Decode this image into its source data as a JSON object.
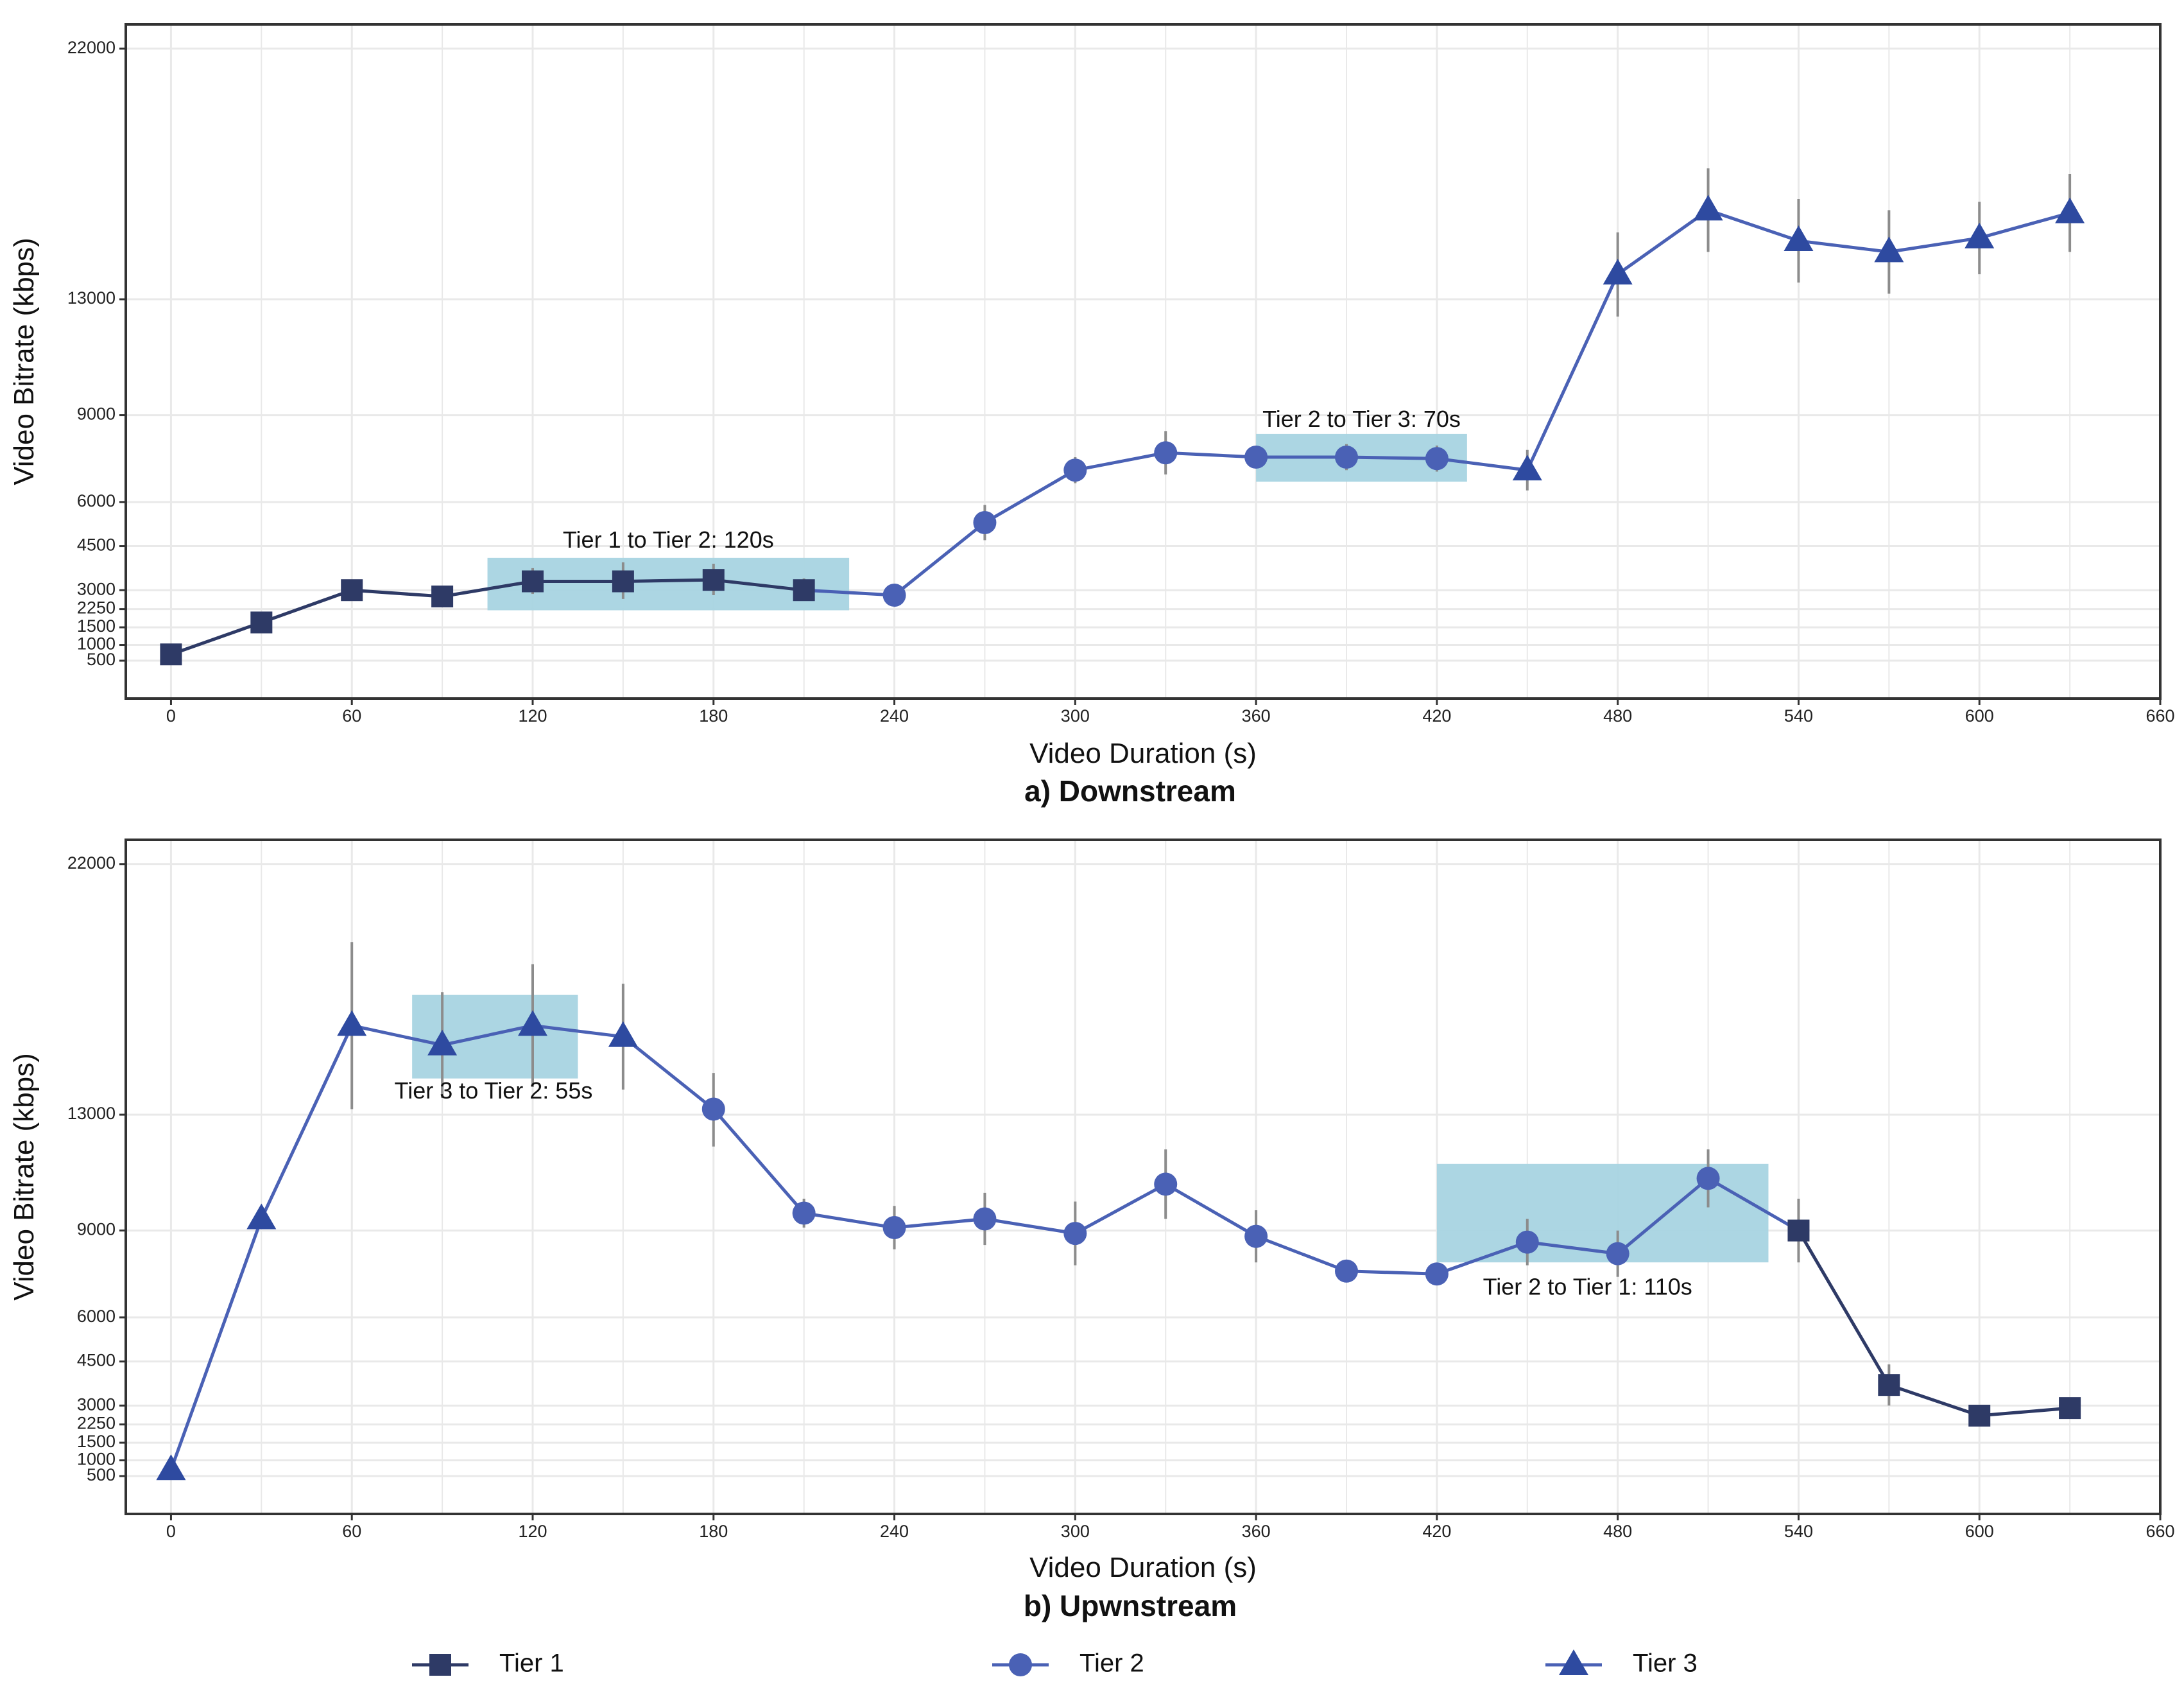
{
  "chart_data": [
    {
      "type": "line",
      "title": "a) Downstream",
      "xlabel": "Video Duration (s)",
      "ylabel": "Video Bitrate (kbps)",
      "xlim": [
        -15,
        660
      ],
      "x_ticks": [
        0,
        60,
        120,
        180,
        240,
        300,
        360,
        420,
        480,
        540,
        600,
        660
      ],
      "y_ticks": [
        500,
        1000,
        1500,
        2250,
        3000,
        4500,
        6000,
        9000,
        13000,
        22000
      ],
      "grid": true,
      "series": [
        {
          "name": "Video Bitrate",
          "points": [
            {
              "x": 0,
              "y": 700,
              "tier": "Tier 1",
              "err": 0
            },
            {
              "x": 30,
              "y": 1700,
              "tier": "Tier 1",
              "err": 0
            },
            {
              "x": 60,
              "y": 3000,
              "tier": "Tier 1",
              "err": 0
            },
            {
              "x": 90,
              "y": 2750,
              "tier": "Tier 1",
              "err": 150
            },
            {
              "x": 120,
              "y": 3300,
              "tier": "Tier 1",
              "err": 450
            },
            {
              "x": 150,
              "y": 3300,
              "tier": "Tier 1",
              "err": 650
            },
            {
              "x": 180,
              "y": 3350,
              "tier": "Tier 1",
              "err": 550
            },
            {
              "x": 210,
              "y": 3000,
              "tier": "Tier 1",
              "err": 400
            },
            {
              "x": 240,
              "y": 2800,
              "tier": "Tier 2",
              "err": 0
            },
            {
              "x": 270,
              "y": 5300,
              "tier": "Tier 2",
              "err": 600
            },
            {
              "x": 300,
              "y": 7100,
              "tier": "Tier 2",
              "err": 450
            },
            {
              "x": 330,
              "y": 7700,
              "tier": "Tier 2",
              "err": 750
            },
            {
              "x": 360,
              "y": 7550,
              "tier": "Tier 2",
              "err": 0
            },
            {
              "x": 390,
              "y": 7550,
              "tier": "Tier 2",
              "err": 450
            },
            {
              "x": 420,
              "y": 7500,
              "tier": "Tier 2",
              "err": 450
            },
            {
              "x": 450,
              "y": 7100,
              "tier": "Tier 3",
              "err": 700
            },
            {
              "x": 480,
              "y": 13900,
              "tier": "Tier 3",
              "err": 1500
            },
            {
              "x": 510,
              "y": 16200,
              "tier": "Tier 3",
              "err": 1500
            },
            {
              "x": 540,
              "y": 15100,
              "tier": "Tier 3",
              "err": 1500
            },
            {
              "x": 570,
              "y": 14700,
              "tier": "Tier 3",
              "err": 1500
            },
            {
              "x": 600,
              "y": 15200,
              "tier": "Tier 3",
              "err": 1300
            },
            {
              "x": 630,
              "y": 16100,
              "tier": "Tier 3",
              "err": 1400
            }
          ]
        }
      ],
      "annotations": [
        {
          "label": "Tier 1 to Tier 2: 120s",
          "x_range": [
            105,
            225
          ],
          "y_range": [
            2200,
            4100
          ],
          "label_at": {
            "x": 165,
            "y": 4650
          }
        },
        {
          "label": "Tier 2 to Tier 3: 70s",
          "x_range": [
            360,
            430
          ],
          "y_range": [
            6700,
            8350
          ],
          "label_at": {
            "x": 395,
            "y": 8800
          }
        }
      ]
    },
    {
      "type": "line",
      "title": "b) Upwnstream",
      "xlabel": "Video Duration (s)",
      "ylabel": "Video Bitrate (kbps)",
      "xlim": [
        -15,
        660
      ],
      "x_ticks": [
        0,
        60,
        120,
        180,
        240,
        300,
        360,
        420,
        480,
        540,
        600,
        660
      ],
      "y_ticks": [
        500,
        1000,
        1500,
        2250,
        3000,
        4500,
        6000,
        9000,
        13000,
        22000
      ],
      "grid": true,
      "series": [
        {
          "name": "Video Bitrate",
          "points": [
            {
              "x": 0,
              "y": 700,
              "tier": "Tier 3",
              "err": 0
            },
            {
              "x": 30,
              "y": 9400,
              "tier": "Tier 3",
              "err": 0
            },
            {
              "x": 60,
              "y": 16200,
              "tier": "Tier 3",
              "err": 3000
            },
            {
              "x": 90,
              "y": 15500,
              "tier": "Tier 3",
              "err": 1900
            },
            {
              "x": 120,
              "y": 16200,
              "tier": "Tier 3",
              "err": 2200
            },
            {
              "x": 150,
              "y": 15800,
              "tier": "Tier 3",
              "err": 1900
            },
            {
              "x": 180,
              "y": 13200,
              "tier": "Tier 2",
              "err": 1300
            },
            {
              "x": 210,
              "y": 9600,
              "tier": "Tier 2",
              "err": 500
            },
            {
              "x": 240,
              "y": 9100,
              "tier": "Tier 2",
              "err": 750
            },
            {
              "x": 270,
              "y": 9400,
              "tier": "Tier 2",
              "err": 900
            },
            {
              "x": 300,
              "y": 8900,
              "tier": "Tier 2",
              "err": 1100
            },
            {
              "x": 330,
              "y": 10600,
              "tier": "Tier 2",
              "err": 1200
            },
            {
              "x": 360,
              "y": 8800,
              "tier": "Tier 2",
              "err": 900
            },
            {
              "x": 390,
              "y": 7600,
              "tier": "Tier 2",
              "err": 0
            },
            {
              "x": 420,
              "y": 7500,
              "tier": "Tier 2",
              "err": 0
            },
            {
              "x": 450,
              "y": 8600,
              "tier": "Tier 2",
              "err": 800
            },
            {
              "x": 480,
              "y": 8200,
              "tier": "Tier 2",
              "err": 800
            },
            {
              "x": 510,
              "y": 10800,
              "tier": "Tier 2",
              "err": 1000
            },
            {
              "x": 540,
              "y": 9000,
              "tier": "Tier 1",
              "err": 1100
            },
            {
              "x": 570,
              "y": 3700,
              "tier": "Tier 1",
              "err": 700
            },
            {
              "x": 600,
              "y": 2600,
              "tier": "Tier 1",
              "err": 0
            },
            {
              "x": 630,
              "y": 2900,
              "tier": "Tier 1",
              "err": 0
            }
          ]
        }
      ],
      "annotations": [
        {
          "label": "Tier 3 to Tier 2: 55s",
          "x_range": [
            80,
            135
          ],
          "y_range": [
            14300,
            17300
          ],
          "label_at": {
            "x": 107,
            "y": 13800
          }
        },
        {
          "label": "Tier 2 to Tier 1: 110s",
          "x_range": [
            420,
            530
          ],
          "y_range": [
            7900,
            11300
          ],
          "label_at": {
            "x": 470,
            "y": 7000
          }
        }
      ]
    }
  ],
  "legend": {
    "placement": "bottom",
    "items": [
      {
        "label": "Tier 1",
        "shape": "square"
      },
      {
        "label": "Tier 2",
        "shape": "circle"
      },
      {
        "label": "Tier 3",
        "shape": "triangle"
      }
    ]
  },
  "colors": {
    "tier1_marker": "#2e3a66",
    "tier1_line": "#2e3a66",
    "tier2_marker": "#4a61b5",
    "tier2_line": "#4a61b5",
    "tier3_marker": "#2e4aa0",
    "tier3_line": "#4a61b5",
    "highlight": "#a8d4e1",
    "error_bar": "#8c8c8c",
    "grid": "#e9e9e9",
    "panel_border": "#333333"
  }
}
